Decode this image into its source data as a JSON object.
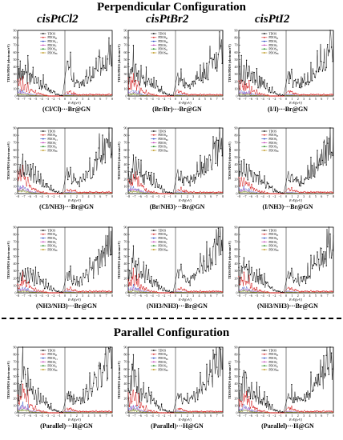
{
  "header": {
    "perpendicular": "Perpendicular Configuration",
    "parallel": "Parallel Configuration",
    "columns": [
      "cisPtCl2",
      "cisPtBr2",
      "cisPtI2"
    ]
  },
  "colors": {
    "TDOS": "#000000",
    "PDOS_Pt": "#d62728",
    "PDOS_X": "#1f3fbf",
    "PDOS_C": "#c03ab5",
    "PDOS_N": "#1a8a1a",
    "PDOS_Br": "#b58a00"
  },
  "chart_data": [
    {
      "type": "line",
      "caption": "(Cl/Cl)···Br@GN",
      "ylabel": "TDOS/PDOS (electrons/eV)",
      "xlabel": "E-Ef(eV)",
      "ylim": [
        0,
        90
      ],
      "xlim": [
        -8,
        8
      ],
      "legend": [
        "TDOS",
        "PDOS_Pt",
        "PDOS_Cl",
        "PDOS_C",
        "PDOS_N",
        "PDOS_Br"
      ],
      "peaks": [
        34,
        30,
        35,
        28,
        26,
        22,
        18,
        15,
        8,
        5,
        2,
        1,
        42,
        22,
        18,
        20,
        25,
        30,
        38,
        48,
        58,
        75
      ],
      "pt": [
        18,
        16,
        12,
        8,
        5,
        3,
        2,
        1,
        0,
        0,
        0,
        0,
        6,
        4,
        2,
        2,
        2,
        2,
        2,
        2,
        2,
        2
      ]
    },
    {
      "type": "line",
      "caption": "(Br/Br)···Br@GN",
      "ylabel": "TDOS/PDOS (electrons/eV)",
      "xlabel": "E-Ef(eV)",
      "ylim": [
        0,
        90
      ],
      "xlim": [
        -8,
        8
      ],
      "legend": [
        "TDOS",
        "PDOS_Pt",
        "PDOS_Br",
        "PDOS_C",
        "PDOS_N",
        "PDOS_Br"
      ],
      "peaks": [
        32,
        42,
        36,
        30,
        25,
        20,
        18,
        14,
        8,
        4,
        2,
        1,
        28,
        20,
        16,
        22,
        26,
        32,
        40,
        50,
        60,
        78
      ],
      "pt": [
        16,
        20,
        14,
        8,
        5,
        3,
        2,
        1,
        0,
        0,
        0,
        0,
        6,
        4,
        2,
        2,
        2,
        2,
        2,
        2,
        2,
        2
      ]
    },
    {
      "type": "line",
      "caption": "(I/I)···Br@GN",
      "ylabel": "TDOS/PDOS (electrons/eV)",
      "xlabel": "E-Ef(eV)",
      "ylim": [
        0,
        90
      ],
      "xlim": [
        -8,
        8
      ],
      "legend": [
        "TDOS",
        "PDOS_Pt",
        "PDOS_I",
        "PDOS_C",
        "PDOS_N",
        "PDOS_Br"
      ],
      "peaks": [
        35,
        30,
        40,
        32,
        26,
        22,
        18,
        14,
        8,
        4,
        2,
        1,
        30,
        20,
        18,
        22,
        28,
        34,
        42,
        50,
        62,
        80
      ],
      "pt": [
        18,
        14,
        16,
        8,
        5,
        3,
        2,
        1,
        0,
        0,
        0,
        0,
        6,
        4,
        2,
        2,
        2,
        2,
        2,
        2,
        2,
        2
      ]
    },
    {
      "type": "line",
      "caption": "(Cl/NH3)···Br@GN",
      "ylabel": "TDOS/PDOS (electrons/eV)",
      "xlabel": "E-Ef(eV)",
      "ylim": [
        0,
        90
      ],
      "xlim": [
        -8,
        8
      ],
      "legend": [
        "TDOS",
        "PDOS_Pt",
        "PDOS_Cl",
        "PDOS_C",
        "PDOS_N",
        "PDOS_Br"
      ],
      "peaks": [
        30,
        48,
        36,
        32,
        28,
        24,
        18,
        14,
        8,
        4,
        2,
        1,
        32,
        20,
        16,
        22,
        28,
        36,
        46,
        56,
        68,
        88
      ],
      "pt": [
        22,
        30,
        18,
        10,
        6,
        3,
        2,
        1,
        0,
        0,
        0,
        0,
        6,
        4,
        2,
        2,
        2,
        2,
        2,
        2,
        2,
        2
      ]
    },
    {
      "type": "line",
      "caption": "(Br/NH3)···Br@GN",
      "ylabel": "TDOS/PDOS (electrons/eV)",
      "xlabel": "E-Ef(eV)",
      "ylim": [
        0,
        90
      ],
      "xlim": [
        -8,
        8
      ],
      "legend": [
        "TDOS",
        "PDOS_Pt",
        "PDOS_Br",
        "PDOS_C",
        "PDOS_N",
        "PDOS_Br"
      ],
      "peaks": [
        28,
        34,
        40,
        30,
        26,
        22,
        18,
        14,
        8,
        4,
        2,
        1,
        30,
        20,
        18,
        24,
        30,
        38,
        48,
        58,
        68,
        82
      ],
      "pt": [
        18,
        22,
        20,
        10,
        6,
        3,
        2,
        1,
        0,
        0,
        0,
        0,
        6,
        4,
        2,
        2,
        2,
        2,
        2,
        2,
        2,
        2
      ]
    },
    {
      "type": "line",
      "caption": "(I/NH3)···Br@GN",
      "ylabel": "TDOS/PDOS (electrons/eV)",
      "xlabel": "E-Ef(eV)",
      "ylim": [
        0,
        90
      ],
      "xlim": [
        -8,
        8
      ],
      "legend": [
        "TDOS",
        "PDOS_Pt",
        "PDOS_I",
        "PDOS_C",
        "PDOS_N",
        "PDOS_Br"
      ],
      "peaks": [
        30,
        36,
        32,
        28,
        24,
        22,
        18,
        14,
        8,
        4,
        2,
        1,
        28,
        20,
        18,
        22,
        30,
        36,
        44,
        56,
        66,
        80
      ],
      "pt": [
        16,
        20,
        14,
        8,
        5,
        3,
        2,
        1,
        0,
        0,
        0,
        0,
        6,
        4,
        2,
        2,
        2,
        2,
        2,
        2,
        2,
        2
      ]
    },
    {
      "type": "line",
      "caption": "(NH3/NH3)···Br@GN",
      "ylabel": "TDOS/PDOS (electrons/eV)",
      "xlabel": "E-Ef(eV)",
      "ylim": [
        0,
        90
      ],
      "xlim": [
        -8,
        8
      ],
      "legend": [
        "TDOS",
        "PDOS_Pt",
        "PDOS_N",
        "PDOS_C",
        "PDOS_N",
        "PDOS_Br"
      ],
      "peaks": [
        22,
        30,
        26,
        24,
        22,
        20,
        16,
        12,
        8,
        4,
        2,
        1,
        26,
        18,
        16,
        20,
        28,
        34,
        44,
        54,
        64,
        78
      ],
      "pt": [
        12,
        18,
        14,
        8,
        5,
        3,
        2,
        1,
        0,
        0,
        0,
        0,
        6,
        4,
        2,
        2,
        2,
        2,
        2,
        2,
        2,
        2
      ]
    },
    {
      "type": "line",
      "caption": "(NH3/NH3)···Br@GN",
      "ylabel": "TDOS/PDOS (electrons/eV)",
      "xlabel": "E-Ef(eV)",
      "ylim": [
        0,
        90
      ],
      "xlim": [
        -8,
        8
      ],
      "legend": [
        "TDOS",
        "PDOS_Pt",
        "PDOS_N",
        "PDOS_C",
        "PDOS_N",
        "PDOS_Br"
      ],
      "peaks": [
        28,
        44,
        34,
        30,
        26,
        22,
        18,
        14,
        8,
        4,
        2,
        1,
        30,
        22,
        18,
        22,
        30,
        38,
        48,
        58,
        68,
        84
      ],
      "pt": [
        14,
        22,
        16,
        8,
        5,
        3,
        2,
        1,
        0,
        0,
        0,
        0,
        6,
        4,
        2,
        2,
        2,
        2,
        2,
        2,
        2,
        2
      ]
    },
    {
      "type": "line",
      "caption": "(NH3/NH3)···Br@GN",
      "ylabel": "TDOS/PDOS (electrons/eV)",
      "xlabel": "E-Ef(eV)",
      "ylim": [
        0,
        90
      ],
      "xlim": [
        -8,
        8
      ],
      "legend": [
        "TDOS",
        "PDOS_Pt",
        "PDOS_N",
        "PDOS_C",
        "PDOS_N",
        "PDOS_Br"
      ],
      "peaks": [
        26,
        40,
        30,
        28,
        24,
        22,
        18,
        14,
        8,
        4,
        2,
        1,
        28,
        20,
        18,
        22,
        28,
        36,
        46,
        56,
        66,
        82
      ],
      "pt": [
        14,
        20,
        16,
        8,
        5,
        3,
        2,
        1,
        0,
        0,
        0,
        0,
        6,
        4,
        2,
        2,
        2,
        2,
        2,
        2,
        2,
        2
      ]
    },
    {
      "type": "line",
      "caption": "(Parallel)···H@GN",
      "ylabel": "TDOS/PDOS (electrons/eV)",
      "xlabel": "E-Ef(eV)",
      "ylim": [
        0,
        90
      ],
      "xlim": [
        -8,
        8
      ],
      "legend": [
        "TDOS",
        "PDOS_Pt",
        "PDOS_Cl",
        "PDOS_C",
        "PDOS_N",
        "PDOS_Br"
      ],
      "peaks": [
        34,
        66,
        40,
        30,
        26,
        22,
        18,
        14,
        8,
        4,
        2,
        1,
        26,
        20,
        18,
        22,
        30,
        38,
        50,
        60,
        70,
        84
      ],
      "pt": [
        20,
        30,
        22,
        10,
        6,
        3,
        2,
        1,
        0,
        0,
        0,
        0,
        6,
        4,
        2,
        2,
        2,
        2,
        2,
        2,
        2,
        2
      ]
    },
    {
      "type": "line",
      "caption": "(Parallel)···H@GN",
      "ylabel": "TDOS/PDOS (electrons/eV)",
      "xlabel": "E-Ef(eV)",
      "ylim": [
        0,
        90
      ],
      "xlim": [
        -8,
        8
      ],
      "legend": [
        "TDOS",
        "PDOS_Pt",
        "PDOS_Br",
        "PDOS_C",
        "PDOS_N",
        "PDOS_Br"
      ],
      "peaks": [
        32,
        58,
        38,
        30,
        26,
        22,
        18,
        14,
        8,
        4,
        2,
        1,
        26,
        20,
        18,
        22,
        30,
        38,
        50,
        60,
        70,
        80
      ],
      "pt": [
        18,
        26,
        20,
        10,
        6,
        3,
        2,
        1,
        0,
        0,
        0,
        0,
        6,
        4,
        2,
        2,
        2,
        2,
        2,
        2,
        2,
        2
      ]
    },
    {
      "type": "line",
      "caption": "(Parallel)···H@GN",
      "ylabel": "TDOS/PDOS (electrons/eV)",
      "xlabel": "E-Ef(eV)",
      "ylim": [
        0,
        90
      ],
      "xlim": [
        -8,
        8
      ],
      "legend": [
        "TDOS",
        "PDOS_Pt",
        "PDOS_I",
        "PDOS_C",
        "PDOS_N",
        "PDOS_Br"
      ],
      "peaks": [
        30,
        52,
        36,
        30,
        26,
        22,
        18,
        14,
        8,
        4,
        2,
        1,
        26,
        20,
        18,
        22,
        30,
        38,
        48,
        58,
        70,
        78
      ],
      "pt": [
        16,
        24,
        18,
        10,
        6,
        3,
        2,
        1,
        0,
        0,
        0,
        0,
        6,
        4,
        2,
        2,
        2,
        2,
        2,
        2,
        2,
        2
      ]
    }
  ]
}
